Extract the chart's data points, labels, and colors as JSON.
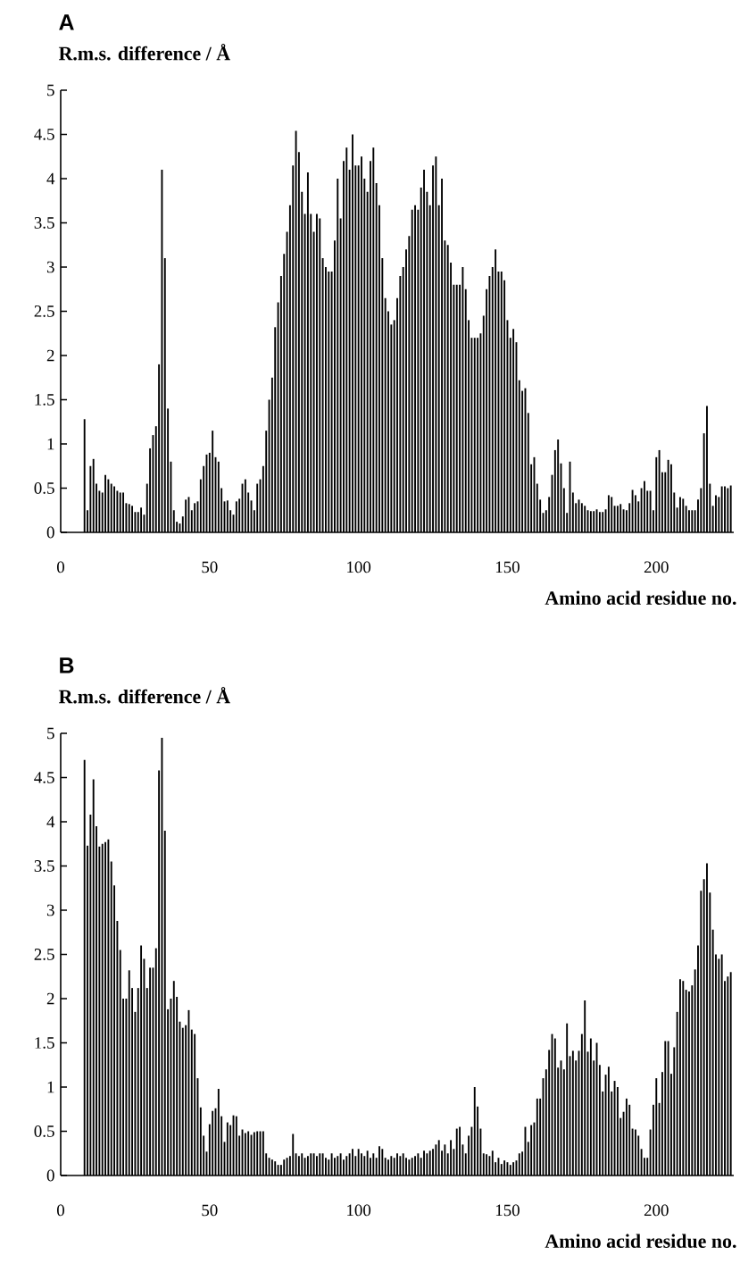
{
  "chart_data": [
    {
      "type": "bar",
      "title": "A",
      "ylabel": "R.m.s. difference / Å",
      "xlabel": "Amino acid residue no.",
      "color": "#000000",
      "xlim": [
        0,
        226
      ],
      "ylim": [
        0,
        5
      ],
      "xticks": [
        0,
        50,
        100,
        150,
        200
      ],
      "yticks": [
        0,
        0.5,
        1,
        1.5,
        2,
        2.5,
        3,
        3.5,
        4,
        4.5,
        5
      ],
      "x": [
        8,
        9,
        10,
        11,
        12,
        13,
        14,
        15,
        16,
        17,
        18,
        19,
        20,
        21,
        22,
        23,
        24,
        25,
        26,
        27,
        28,
        29,
        30,
        31,
        32,
        33,
        34,
        35,
        36,
        37,
        38,
        39,
        40,
        41,
        42,
        43,
        44,
        45,
        46,
        47,
        48,
        49,
        50,
        51,
        52,
        53,
        54,
        55,
        56,
        57,
        58,
        59,
        60,
        61,
        62,
        63,
        64,
        65,
        66,
        67,
        68,
        69,
        70,
        71,
        72,
        73,
        74,
        75,
        76,
        77,
        78,
        79,
        80,
        81,
        82,
        83,
        84,
        85,
        86,
        87,
        88,
        89,
        90,
        91,
        92,
        93,
        94,
        95,
        96,
        97,
        98,
        99,
        100,
        101,
        102,
        103,
        104,
        105,
        106,
        107,
        108,
        109,
        110,
        111,
        112,
        113,
        114,
        115,
        116,
        117,
        118,
        119,
        120,
        121,
        122,
        123,
        124,
        125,
        126,
        127,
        128,
        129,
        130,
        131,
        132,
        133,
        134,
        135,
        136,
        137,
        138,
        139,
        140,
        141,
        142,
        143,
        144,
        145,
        146,
        147,
        148,
        149,
        150,
        151,
        152,
        153,
        154,
        155,
        156,
        157,
        158,
        159,
        160,
        161,
        162,
        163,
        164,
        165,
        166,
        167,
        168,
        169,
        170,
        171,
        172,
        173,
        174,
        175,
        176,
        177,
        178,
        179,
        180,
        181,
        182,
        183,
        184,
        185,
        186,
        187,
        188,
        189,
        190,
        191,
        192,
        193,
        194,
        195,
        196,
        197,
        198,
        199,
        200,
        201,
        202,
        203,
        204,
        205,
        206,
        207,
        208,
        209,
        210,
        211,
        212,
        213,
        214,
        215,
        216,
        217,
        218,
        219,
        220,
        221,
        222,
        223,
        224,
        225
      ],
      "values": [
        1.28,
        0.25,
        0.75,
        0.83,
        0.55,
        0.47,
        0.45,
        0.65,
        0.6,
        0.55,
        0.52,
        0.47,
        0.45,
        0.45,
        0.33,
        0.32,
        0.3,
        0.23,
        0.23,
        0.28,
        0.2,
        0.55,
        0.95,
        1.1,
        1.2,
        1.9,
        4.1,
        3.1,
        1.4,
        0.8,
        0.25,
        0.12,
        0.1,
        0.18,
        0.37,
        0.4,
        0.25,
        0.33,
        0.35,
        0.6,
        0.75,
        0.88,
        0.9,
        1.15,
        0.85,
        0.8,
        0.5,
        0.35,
        0.36,
        0.25,
        0.2,
        0.35,
        0.38,
        0.55,
        0.6,
        0.45,
        0.36,
        0.25,
        0.55,
        0.6,
        0.75,
        1.15,
        1.5,
        1.75,
        2.32,
        2.6,
        2.9,
        3.15,
        3.4,
        3.7,
        4.15,
        4.54,
        4.3,
        3.85,
        3.6,
        4.07,
        3.6,
        3.4,
        3.6,
        3.55,
        3.1,
        3.0,
        2.95,
        2.95,
        3.3,
        4.0,
        3.55,
        4.2,
        4.35,
        4.1,
        4.5,
        4.15,
        4.15,
        4.25,
        4.0,
        3.85,
        4.2,
        4.35,
        3.95,
        3.7,
        3.1,
        2.65,
        2.5,
        2.35,
        2.4,
        2.65,
        2.9,
        3.0,
        3.2,
        3.35,
        3.65,
        3.7,
        3.65,
        3.9,
        4.1,
        3.85,
        3.7,
        4.15,
        4.25,
        3.7,
        4.0,
        3.3,
        3.25,
        3.05,
        2.8,
        2.8,
        2.8,
        3.0,
        2.75,
        2.4,
        2.2,
        2.2,
        2.2,
        2.25,
        2.45,
        2.75,
        2.9,
        3.0,
        3.2,
        2.95,
        2.95,
        2.85,
        2.4,
        2.2,
        2.3,
        2.15,
        1.72,
        1.6,
        1.63,
        1.35,
        0.77,
        0.85,
        0.55,
        0.37,
        0.22,
        0.25,
        0.4,
        0.65,
        0.93,
        1.05,
        0.78,
        0.5,
        0.22,
        0.8,
        0.45,
        0.33,
        0.37,
        0.33,
        0.3,
        0.25,
        0.24,
        0.24,
        0.26,
        0.23,
        0.23,
        0.26,
        0.42,
        0.4,
        0.3,
        0.3,
        0.32,
        0.26,
        0.25,
        0.33,
        0.48,
        0.42,
        0.35,
        0.5,
        0.58,
        0.47,
        0.47,
        0.25,
        0.85,
        0.93,
        0.68,
        0.68,
        0.82,
        0.77,
        0.45,
        0.28,
        0.4,
        0.38,
        0.3,
        0.25,
        0.25,
        0.25,
        0.37,
        0.5,
        1.12,
        1.43,
        0.55,
        0.3,
        0.42,
        0.4,
        0.52,
        0.52,
        0.5,
        0.53
      ]
    },
    {
      "type": "bar",
      "title": "B",
      "ylabel": "R.m.s. difference / Å",
      "xlabel": "Amino acid residue no.",
      "color": "#000000",
      "xlim": [
        0,
        226
      ],
      "ylim": [
        0,
        5
      ],
      "xticks": [
        0,
        50,
        100,
        150,
        200
      ],
      "yticks": [
        0,
        0.5,
        1,
        1.5,
        2,
        2.5,
        3,
        3.5,
        4,
        4.5,
        5
      ],
      "x": [
        8,
        9,
        10,
        11,
        12,
        13,
        14,
        15,
        16,
        17,
        18,
        19,
        20,
        21,
        22,
        23,
        24,
        25,
        26,
        27,
        28,
        29,
        30,
        31,
        32,
        33,
        34,
        35,
        36,
        37,
        38,
        39,
        40,
        41,
        42,
        43,
        44,
        45,
        46,
        47,
        48,
        49,
        50,
        51,
        52,
        53,
        54,
        55,
        56,
        57,
        58,
        59,
        60,
        61,
        62,
        63,
        64,
        65,
        66,
        67,
        68,
        69,
        70,
        71,
        72,
        73,
        74,
        75,
        76,
        77,
        78,
        79,
        80,
        81,
        82,
        83,
        84,
        85,
        86,
        87,
        88,
        89,
        90,
        91,
        92,
        93,
        94,
        95,
        96,
        97,
        98,
        99,
        100,
        101,
        102,
        103,
        104,
        105,
        106,
        107,
        108,
        109,
        110,
        111,
        112,
        113,
        114,
        115,
        116,
        117,
        118,
        119,
        120,
        121,
        122,
        123,
        124,
        125,
        126,
        127,
        128,
        129,
        130,
        131,
        132,
        133,
        134,
        135,
        136,
        137,
        138,
        139,
        140,
        141,
        142,
        143,
        144,
        145,
        146,
        147,
        148,
        149,
        150,
        151,
        152,
        153,
        154,
        155,
        156,
        157,
        158,
        159,
        160,
        161,
        162,
        163,
        164,
        165,
        166,
        167,
        168,
        169,
        170,
        171,
        172,
        173,
        174,
        175,
        176,
        177,
        178,
        179,
        180,
        181,
        182,
        183,
        184,
        185,
        186,
        187,
        188,
        189,
        190,
        191,
        192,
        193,
        194,
        195,
        196,
        197,
        198,
        199,
        200,
        201,
        202,
        203,
        204,
        205,
        206,
        207,
        208,
        209,
        210,
        211,
        212,
        213,
        214,
        215,
        216,
        217,
        218,
        219,
        220,
        221,
        222,
        223,
        224,
        225
      ],
      "values": [
        4.7,
        3.73,
        4.08,
        4.48,
        3.95,
        3.72,
        3.75,
        3.77,
        3.8,
        3.55,
        3.28,
        2.88,
        2.55,
        2.0,
        2.0,
        2.32,
        2.12,
        1.85,
        2.12,
        2.6,
        2.45,
        2.12,
        2.35,
        2.35,
        2.57,
        4.58,
        4.95,
        3.9,
        1.88,
        2.0,
        2.2,
        2.02,
        1.74,
        1.67,
        1.7,
        1.87,
        1.65,
        1.6,
        1.1,
        0.77,
        0.45,
        0.27,
        0.58,
        0.73,
        0.76,
        0.98,
        0.67,
        0.38,
        0.6,
        0.57,
        0.68,
        0.67,
        0.45,
        0.52,
        0.48,
        0.5,
        0.46,
        0.49,
        0.5,
        0.5,
        0.5,
        0.25,
        0.2,
        0.18,
        0.16,
        0.12,
        0.12,
        0.18,
        0.2,
        0.22,
        0.47,
        0.25,
        0.22,
        0.25,
        0.2,
        0.22,
        0.25,
        0.25,
        0.22,
        0.25,
        0.25,
        0.2,
        0.18,
        0.25,
        0.2,
        0.22,
        0.25,
        0.18,
        0.22,
        0.25,
        0.3,
        0.22,
        0.3,
        0.25,
        0.22,
        0.28,
        0.2,
        0.25,
        0.2,
        0.33,
        0.3,
        0.2,
        0.18,
        0.22,
        0.2,
        0.25,
        0.22,
        0.25,
        0.2,
        0.18,
        0.2,
        0.22,
        0.25,
        0.2,
        0.28,
        0.25,
        0.28,
        0.3,
        0.35,
        0.4,
        0.28,
        0.35,
        0.25,
        0.4,
        0.3,
        0.53,
        0.55,
        0.35,
        0.25,
        0.45,
        0.55,
        1.0,
        0.78,
        0.53,
        0.25,
        0.24,
        0.22,
        0.28,
        0.15,
        0.2,
        0.13,
        0.17,
        0.15,
        0.12,
        0.15,
        0.17,
        0.25,
        0.27,
        0.55,
        0.38,
        0.57,
        0.6,
        0.87,
        0.87,
        1.1,
        1.2,
        1.42,
        1.6,
        1.55,
        1.22,
        1.3,
        1.2,
        1.72,
        1.35,
        1.41,
        1.3,
        1.41,
        1.6,
        1.98,
        1.4,
        1.55,
        1.3,
        1.5,
        1.25,
        0.95,
        1.14,
        1.23,
        0.95,
        1.07,
        1.0,
        0.65,
        0.72,
        0.87,
        0.8,
        0.53,
        0.52,
        0.45,
        0.3,
        0.2,
        0.2,
        0.52,
        0.8,
        1.1,
        0.82,
        1.17,
        1.52,
        1.52,
        1.15,
        1.45,
        1.85,
        2.22,
        2.2,
        2.1,
        2.08,
        2.15,
        2.33,
        2.6,
        3.22,
        3.35,
        3.53,
        3.2,
        2.78,
        2.5,
        2.45,
        2.5,
        2.2,
        2.25,
        2.3
      ]
    }
  ]
}
